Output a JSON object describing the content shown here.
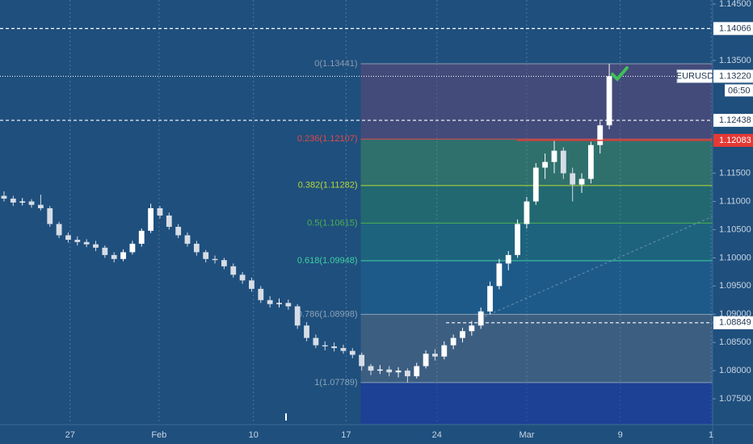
{
  "chart_data": {
    "type": "candlestick",
    "symbol": "EURUSD",
    "countdown": "06:50",
    "open": [
      1.111,
      1.1105,
      1.1098,
      1.11,
      1.1094,
      1.1088,
      1.106,
      1.104,
      1.1032,
      1.1028,
      1.1024,
      1.1018,
      1.1005,
      1.0998,
      1.101,
      1.1025,
      1.1048,
      1.1088,
      1.1075,
      1.1055,
      1.104,
      1.1025,
      1.101,
      1.0998,
      1.0996,
      1.0985,
      1.097,
      1.096,
      1.0945,
      1.0925,
      1.0918,
      1.092,
      1.0914,
      1.088,
      1.0858,
      1.0845,
      1.0843,
      1.084,
      1.0835,
      1.0828,
      1.0808,
      1.08,
      1.0802,
      1.0797,
      1.08,
      1.079,
      1.0808,
      1.083,
      1.0825,
      1.0845,
      1.0858,
      1.087,
      1.088,
      1.0905,
      1.095,
      1.099,
      1.1005,
      1.106,
      1.11,
      1.116,
      1.117,
      1.119,
      1.115,
      1.113,
      1.114,
      1.12,
      1.1235
    ],
    "high": [
      1.1118,
      1.111,
      1.1106,
      1.1104,
      1.1112,
      1.1092,
      1.1064,
      1.1045,
      1.1038,
      1.1033,
      1.103,
      1.1022,
      1.101,
      1.1015,
      1.103,
      1.1052,
      1.1096,
      1.1092,
      1.108,
      1.106,
      1.1045,
      1.103,
      1.1014,
      1.1004,
      1.1,
      1.099,
      1.0975,
      1.0965,
      1.095,
      1.0932,
      1.0928,
      1.0926,
      1.0918,
      1.0886,
      1.0864,
      1.0852,
      1.085,
      1.0846,
      1.084,
      1.0832,
      1.0812,
      1.081,
      1.0808,
      1.0806,
      1.0804,
      1.0814,
      1.0836,
      1.0838,
      1.0852,
      1.0864,
      1.0876,
      1.0888,
      1.0912,
      1.0958,
      1.0998,
      1.1012,
      1.1068,
      1.1108,
      1.1168,
      1.1185,
      1.1208,
      1.1196,
      1.116,
      1.115,
      1.1206,
      1.1242,
      1.1344
    ],
    "low": [
      1.11,
      1.1092,
      1.1093,
      1.1089,
      1.1084,
      1.1055,
      1.1035,
      1.1027,
      1.1022,
      1.1019,
      1.1012,
      1.1,
      1.0992,
      1.0994,
      1.1006,
      1.102,
      1.1044,
      1.107,
      1.105,
      1.1035,
      1.102,
      1.1004,
      1.0992,
      1.099,
      1.098,
      1.0965,
      1.0954,
      1.094,
      1.092,
      1.0912,
      1.0912,
      1.0908,
      1.0874,
      1.0852,
      1.084,
      1.0836,
      1.0834,
      1.083,
      1.0822,
      1.08,
      1.0792,
      1.0794,
      1.079,
      1.0788,
      1.0779,
      1.0786,
      1.0804,
      1.0818,
      1.082,
      1.0838,
      1.085,
      1.0862,
      1.0874,
      1.09,
      1.0944,
      1.0978,
      1.1,
      1.1052,
      1.1094,
      1.114,
      1.115,
      1.114,
      1.11,
      1.1115,
      1.1132,
      1.1185,
      1.1228
    ],
    "close": [
      1.1105,
      1.1098,
      1.11,
      1.1094,
      1.1088,
      1.106,
      1.104,
      1.1032,
      1.1028,
      1.1024,
      1.1018,
      1.1005,
      1.0998,
      1.101,
      1.1025,
      1.1048,
      1.1088,
      1.1075,
      1.1055,
      1.104,
      1.1025,
      1.101,
      1.0998,
      1.0996,
      1.0985,
      1.097,
      1.096,
      1.0945,
      1.0925,
      1.0918,
      1.092,
      1.0914,
      1.088,
      1.0858,
      1.0845,
      1.0843,
      1.084,
      1.0835,
      1.0828,
      1.0808,
      1.08,
      1.0802,
      1.0797,
      1.08,
      1.079,
      1.0808,
      1.083,
      1.0825,
      1.0845,
      1.0858,
      1.087,
      1.088,
      1.0905,
      1.095,
      1.099,
      1.1005,
      1.106,
      1.11,
      1.116,
      1.117,
      1.119,
      1.115,
      1.113,
      1.114,
      1.12,
      1.1235,
      1.1322
    ],
    "up_color": "#ffffff",
    "down_color": "#d6dde6",
    "background": "#1f4f7d",
    "grid": "vertical",
    "xlim": [
      -0.44,
      77.27
    ],
    "xticks": [
      {
        "value": 7.2,
        "label": "27"
      },
      {
        "value": 16.9,
        "label": "Feb"
      },
      {
        "value": 27.2,
        "label": "10"
      },
      {
        "value": 37.3,
        "label": "17"
      },
      {
        "value": 47.2,
        "label": "24"
      },
      {
        "value": 57,
        "label": "Mar"
      },
      {
        "value": 67.2,
        "label": "9"
      },
      {
        "value": 77.1,
        "label": "1"
      }
    ],
    "ylim": [
      1.07057,
      1.14572
    ],
    "yticks": [
      {
        "value": 1.145,
        "label": "1.14500"
      },
      {
        "value": 1.135,
        "label": "1.13500"
      },
      {
        "value": 1.115,
        "label": "1.11500"
      },
      {
        "value": 1.11,
        "label": "1.11000"
      },
      {
        "value": 1.105,
        "label": "1.10500"
      },
      {
        "value": 1.1,
        "label": "1.10000"
      },
      {
        "value": 1.095,
        "label": "1.09500"
      },
      {
        "value": 1.09,
        "label": "1.09000"
      },
      {
        "value": 1.085,
        "label": "1.08500"
      },
      {
        "value": 1.08,
        "label": "1.08000"
      },
      {
        "value": 1.075,
        "label": "1.07500"
      }
    ],
    "fib": {
      "start": 38.9,
      "levels": [
        {
          "value": 1.13441,
          "label": "0(1.13441)",
          "color": "#8f9bb0",
          "fill": "rgba(110,70,120,0.45)"
        },
        {
          "value": 1.12107,
          "label": "0.236(1.12107)",
          "color": "#e04848",
          "fill": "rgba(76,175,80,0.35)"
        },
        {
          "value": 1.11282,
          "label": "0.382(1.11282)",
          "color": "#b8d83a",
          "fill": "rgba(40,160,90,0.32)"
        },
        {
          "value": 1.10615,
          "label": "0.5(1.10615)",
          "color": "#4caf50",
          "fill": "rgba(30,150,130,0.28)"
        },
        {
          "value": 1.09948,
          "label": "0.618(1.09948)",
          "color": "#3fd0a0",
          "fill": "rgba(30,120,170,0.28)"
        },
        {
          "value": 1.08998,
          "label": "0.786(1.08998)",
          "color": "#8aa3b8",
          "fill": "rgba(130,130,140,0.3)"
        },
        {
          "value": 1.07789,
          "label": "1(1.07789)",
          "color": "#8aa3b8",
          "fill": "rgba(25,55,170,0.55)"
        }
      ]
    },
    "hlines": [
      {
        "value": 1.14066,
        "label": "1.14066",
        "from": -0.44,
        "color": "#ffffff",
        "style": "dashed"
      },
      {
        "value": 1.12438,
        "label": "1.12438",
        "from": -0.44,
        "color": "#ffffff",
        "style": "dashed"
      },
      {
        "value": 1.12083,
        "label": "1.12083",
        "from": 55.9,
        "color": "#e53935",
        "style": "solid"
      },
      {
        "value": 1.08849,
        "label": "1.08849",
        "from": 48.2,
        "color": "#ffffff",
        "style": "dashed"
      }
    ],
    "last_price": {
      "value": 1.1322,
      "label": "1.13220"
    }
  }
}
